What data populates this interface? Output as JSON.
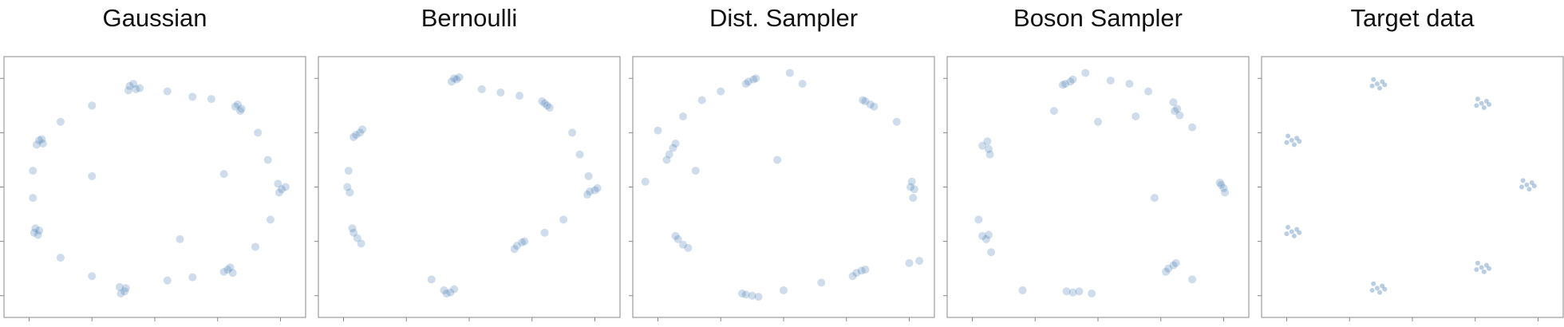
{
  "chart_data": [
    {
      "type": "scatter",
      "title": "Gaussian",
      "color": "#3a72b0",
      "alpha": 0.25,
      "marker_size": 5,
      "xlim": [
        -1.2,
        1.2
      ],
      "ylim": [
        -1.2,
        1.2
      ],
      "xticks": [
        -1,
        -0.5,
        0,
        0.5,
        1
      ],
      "yticks": [
        -1,
        -0.5,
        0,
        0.5,
        1
      ],
      "x": [
        -0.2,
        -0.15,
        -0.17,
        -0.12,
        -0.21,
        0.66,
        0.69,
        0.64,
        0.68,
        0.98,
        1.01,
        1.04,
        0.99,
        0.58,
        0.62,
        0.6,
        0.55,
        -0.28,
        -0.24,
        -0.27,
        -0.23,
        -0.95,
        -0.93,
        -0.96,
        -0.92,
        -0.92,
        -0.89,
        -0.94,
        -0.9,
        0.1,
        0.3,
        0.45,
        0.82,
        0.9,
        0.92,
        0.8,
        0.3,
        0.1,
        -0.5,
        -0.75,
        -0.97,
        -0.97,
        -0.75,
        -0.5,
        -0.5,
        0.55,
        0.2
      ],
      "y": [
        0.93,
        0.9,
        0.95,
        0.91,
        0.89,
        0.76,
        0.72,
        0.74,
        0.7,
        0.03,
        -0.02,
        0.0,
        -0.05,
        -0.76,
        -0.79,
        -0.74,
        -0.78,
        -0.92,
        -0.96,
        -0.98,
        -0.93,
        -0.38,
        -0.44,
        -0.42,
        -0.4,
        0.43,
        0.4,
        0.39,
        0.44,
        0.88,
        0.83,
        0.81,
        0.5,
        0.25,
        -0.3,
        -0.55,
        -0.83,
        -0.86,
        -0.82,
        -0.65,
        -0.1,
        0.15,
        0.6,
        0.75,
        0.1,
        0.12,
        -0.48
      ]
    },
    {
      "type": "scatter",
      "title": "Bernoulli",
      "color": "#3a72b0",
      "alpha": 0.25,
      "marker_size": 5,
      "xlim": [
        -1.2,
        1.2
      ],
      "ylim": [
        -1.2,
        1.2
      ],
      "xticks": [
        -1,
        -0.5,
        0,
        0.5,
        1
      ],
      "yticks": [
        -1,
        -0.5,
        0,
        0.5,
        1
      ],
      "x": [
        -0.14,
        -0.1,
        -0.12,
        -0.08,
        0.58,
        0.62,
        0.6,
        0.64,
        0.96,
        1.0,
        1.02,
        0.94,
        0.38,
        0.42,
        0.44,
        0.36,
        -0.2,
        -0.15,
        -0.12,
        -0.18,
        -0.92,
        -0.89,
        -0.86,
        -0.93,
        -0.92,
        -0.87,
        -0.85,
        -0.9,
        0.1,
        0.25,
        0.4,
        0.82,
        0.88,
        0.95,
        0.75,
        0.6,
        -0.3,
        -0.96,
        -0.95,
        -0.97
      ],
      "y": [
        0.97,
        0.99,
        1.0,
        1.01,
        0.79,
        0.75,
        0.77,
        0.73,
        -0.04,
        -0.03,
        -0.01,
        -0.07,
        -0.54,
        -0.51,
        -0.5,
        -0.57,
        -0.95,
        -0.97,
        -0.94,
        -0.98,
        -0.42,
        -0.47,
        -0.52,
        -0.38,
        0.46,
        0.5,
        0.53,
        0.48,
        0.9,
        0.87,
        0.84,
        0.5,
        0.3,
        0.1,
        -0.3,
        -0.42,
        -0.85,
        0.15,
        -0.05,
        0.0
      ]
    },
    {
      "type": "scatter",
      "title": "Dist. Sampler",
      "color": "#3a72b0",
      "alpha": 0.25,
      "marker_size": 5,
      "xlim": [
        -1.2,
        1.2
      ],
      "ylim": [
        -1.2,
        1.2
      ],
      "xticks": [
        -1,
        -0.5,
        0,
        0.5,
        1
      ],
      "yticks": [
        -1,
        -0.5,
        0,
        0.5,
        1
      ],
      "x": [
        -0.28,
        -0.24,
        -0.22,
        -0.3,
        0.65,
        0.69,
        0.72,
        0.63,
        1.02,
        1.04,
        1.03,
        1.01,
        0.58,
        0.62,
        0.55,
        0.65,
        -0.3,
        -0.25,
        -0.2,
        -0.33,
        -0.84,
        -0.8,
        -0.76,
        -0.86,
        -0.91,
        -0.88,
        -0.93,
        -0.86,
        -0.5,
        -0.65,
        -0.8,
        -1.1,
        0.05,
        0.9,
        1.0,
        1.08,
        0.3,
        0.0,
        -0.05,
        -0.7,
        -1.0,
        0.15
      ],
      "y": [
        0.97,
        0.99,
        1.0,
        0.95,
        0.79,
        0.76,
        0.74,
        0.8,
        0.05,
        -0.02,
        -0.1,
        0.0,
        -0.79,
        -0.77,
        -0.82,
        -0.76,
        -0.99,
        -1.0,
        -1.01,
        -0.98,
        -0.48,
        -0.53,
        -0.56,
        -0.45,
        0.3,
        0.36,
        0.25,
        0.4,
        0.88,
        0.8,
        0.65,
        0.05,
        1.05,
        0.6,
        -0.7,
        -0.68,
        -0.88,
        -0.95,
        0.25,
        0.15,
        0.52,
        0.95
      ]
    },
    {
      "type": "scatter",
      "title": "Boson Sampler",
      "color": "#3a72b0",
      "alpha": 0.25,
      "marker_size": 5,
      "xlim": [
        -1.2,
        1.2
      ],
      "ylim": [
        -1.2,
        1.2
      ],
      "xticks": [
        -1,
        -0.5,
        0,
        0.5,
        1
      ],
      "yticks": [
        -1,
        -0.5,
        0,
        0.5,
        1
      ],
      "x": [
        -0.26,
        -0.22,
        -0.2,
        -0.28,
        0.6,
        0.63,
        0.65,
        0.61,
        0.98,
        1.0,
        1.01,
        0.97,
        0.56,
        0.6,
        0.62,
        0.54,
        -0.25,
        -0.2,
        -0.15,
        -0.05,
        -0.92,
        -0.89,
        -0.87,
        -0.95,
        -0.88,
        -0.87,
        -0.86,
        -0.92,
        -0.1,
        0.1,
        0.25,
        0.4,
        0.3,
        0.75,
        -0.35,
        0.0,
        0.45,
        0.75,
        -0.6,
        -0.85
      ],
      "y": [
        0.95,
        0.97,
        0.99,
        0.94,
        0.78,
        0.72,
        0.66,
        0.7,
        0.02,
        -0.01,
        -0.05,
        0.04,
        -0.75,
        -0.72,
        -0.7,
        -0.78,
        -0.96,
        -0.97,
        -0.96,
        -0.98,
        -0.45,
        -0.48,
        -0.44,
        -0.3,
        0.42,
        0.35,
        0.3,
        0.38,
        1.05,
        0.98,
        0.95,
        0.88,
        0.65,
        0.55,
        0.7,
        0.6,
        -0.1,
        -0.85,
        -0.95,
        -0.6
      ]
    },
    {
      "type": "scatter",
      "title": "Target data",
      "color": "#3a72b0",
      "alpha": 0.35,
      "marker_size": 3,
      "xlim": [
        -1.2,
        1.2
      ],
      "ylim": [
        -1.2,
        1.2
      ],
      "xticks": [
        -1,
        -0.5,
        0,
        0.5,
        1
      ],
      "yticks": [
        -1,
        -0.5,
        0,
        0.5,
        1
      ],
      "x": [
        -0.28,
        -0.24,
        -0.32,
        -0.26,
        -0.31,
        -0.22,
        0.55,
        0.59,
        0.51,
        0.57,
        0.52,
        0.61,
        0.91,
        0.95,
        0.87,
        0.93,
        0.88,
        0.97,
        0.55,
        0.59,
        0.51,
        0.57,
        0.52,
        0.61,
        -0.28,
        -0.24,
        -0.32,
        -0.26,
        -0.31,
        -0.22,
        -0.96,
        -0.92,
        -1.0,
        -0.94,
        -0.99,
        -0.9,
        -0.96,
        -0.92,
        -1.0,
        -0.94,
        -0.99,
        -0.9
      ],
      "y": [
        0.95,
        0.97,
        0.93,
        0.91,
        0.99,
        0.94,
        0.77,
        0.79,
        0.75,
        0.73,
        0.81,
        0.76,
        0.02,
        0.04,
        0.0,
        -0.02,
        0.06,
        0.01,
        -0.74,
        -0.72,
        -0.76,
        -0.78,
        -0.7,
        -0.75,
        -0.93,
        -0.91,
        -0.95,
        -0.97,
        -0.89,
        -0.94,
        -0.41,
        -0.39,
        -0.43,
        -0.45,
        -0.37,
        -0.42,
        0.43,
        0.45,
        0.41,
        0.39,
        0.47,
        0.42
      ]
    }
  ]
}
